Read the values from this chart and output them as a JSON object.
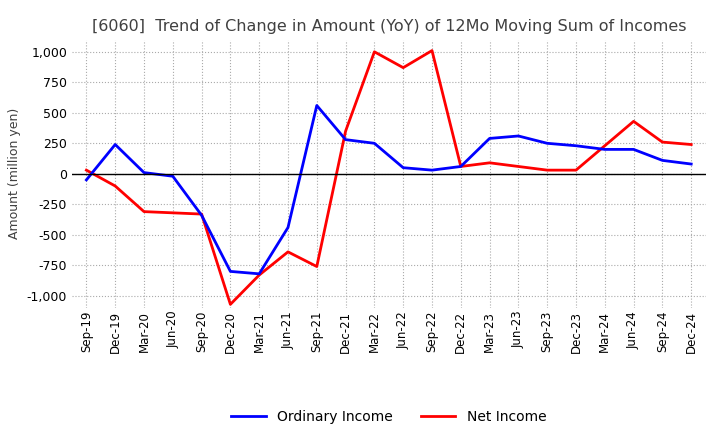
{
  "title": "[6060]  Trend of Change in Amount (YoY) of 12Mo Moving Sum of Incomes",
  "ylabel": "Amount (million yen)",
  "ylim": [
    -1100,
    1100
  ],
  "yticks": [
    -1000,
    -750,
    -500,
    -250,
    0,
    250,
    500,
    750,
    1000
  ],
  "x_labels": [
    "Sep-19",
    "Dec-19",
    "Mar-20",
    "Jun-20",
    "Sep-20",
    "Dec-20",
    "Mar-21",
    "Jun-21",
    "Sep-21",
    "Dec-21",
    "Mar-22",
    "Jun-22",
    "Sep-22",
    "Dec-22",
    "Mar-23",
    "Jun-23",
    "Sep-23",
    "Dec-23",
    "Mar-24",
    "Jun-24",
    "Sep-24",
    "Dec-24"
  ],
  "ordinary_income": [
    -50,
    240,
    10,
    -20,
    -340,
    -800,
    -820,
    -440,
    560,
    280,
    250,
    50,
    30,
    60,
    290,
    310,
    250,
    230,
    200,
    200,
    110,
    80
  ],
  "net_income": [
    30,
    -100,
    -310,
    -320,
    -330,
    -1070,
    -830,
    -640,
    -760,
    350,
    1000,
    870,
    1010,
    60,
    90,
    60,
    30,
    30,
    230,
    430,
    260,
    240
  ],
  "ordinary_color": "#0000ff",
  "net_color": "#ff0000",
  "background_color": "#ffffff",
  "grid_color": "#aaaaaa",
  "title_color": "#404040",
  "legend_labels": [
    "Ordinary Income",
    "Net Income"
  ]
}
